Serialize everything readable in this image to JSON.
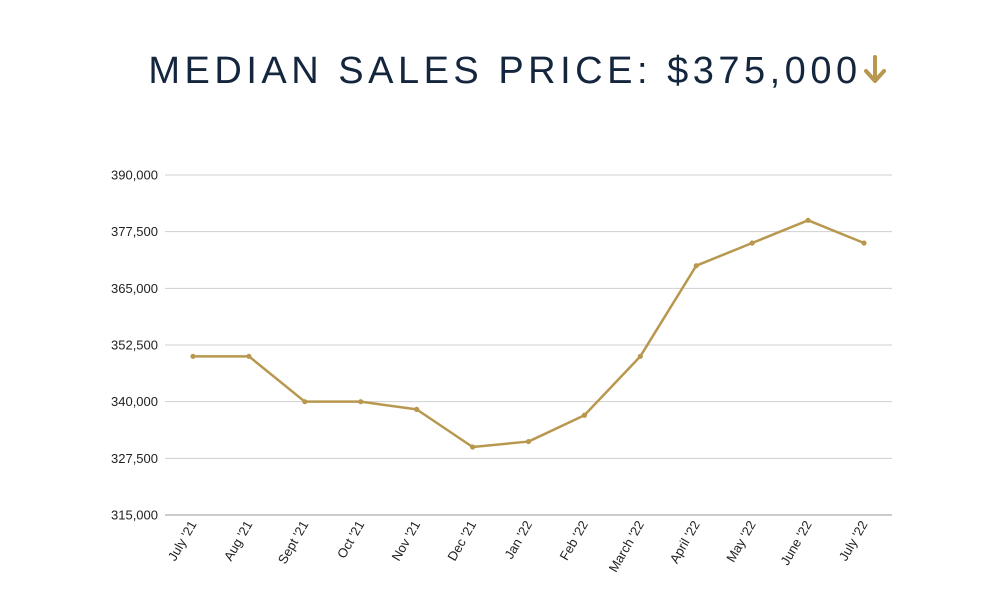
{
  "header": {
    "title_prefix": "MEDIAN SALES PRICE:",
    "title_value": "$375,000",
    "trend_icon": "arrow-down-icon",
    "title_color": "#14263d",
    "accent_color": "#b8984f"
  },
  "chart_data": {
    "type": "line",
    "title": "MEDIAN SALES PRICE: $375,000",
    "xlabel": "",
    "ylabel": "",
    "categories": [
      "July '21",
      "Aug '21",
      "Sept '21",
      "Oct '21",
      "Nov '21",
      "Dec '21",
      "Jan '22",
      "Feb '22",
      "March '22",
      "April '22",
      "May '22",
      "June '22",
      "July '22"
    ],
    "series": [
      {
        "values": [
          350000,
          350000,
          340000,
          340000,
          338300,
          330000,
          331200,
          337000,
          350000,
          370000,
          375000,
          380000,
          375000
        ],
        "color": "#b8984f"
      }
    ],
    "ylim": [
      315000,
      390000
    ],
    "yticks": [
      315000,
      327500,
      340000,
      352500,
      365000,
      377500,
      390000
    ],
    "ytick_labels": [
      "315,000",
      "327,500",
      "340,000",
      "352,500",
      "365,000",
      "377,500",
      "390,000"
    ],
    "grid": true,
    "legend": "none"
  }
}
